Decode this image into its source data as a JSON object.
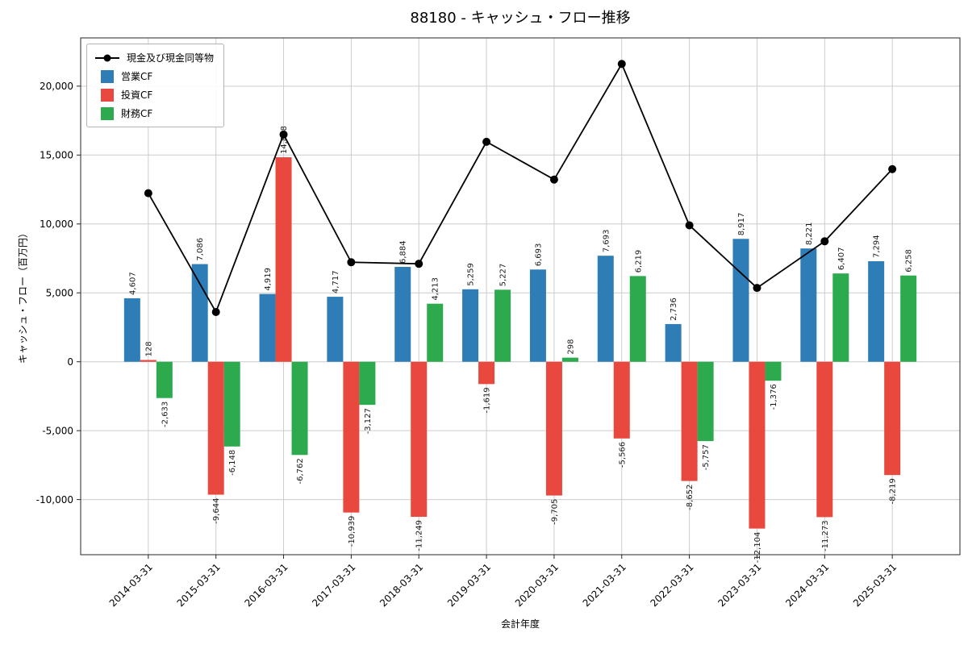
{
  "chart_data": {
    "type": "bar",
    "title": "88180 - キャッシュ・フロー推移",
    "xlabel": "会計年度",
    "ylabel": "キャッシュ・フロー（百万円）",
    "categories": [
      "2014-03-31",
      "2015-03-31",
      "2016-03-31",
      "2017-03-31",
      "2018-03-31",
      "2019-03-31",
      "2020-03-31",
      "2021-03-31",
      "2022-03-31",
      "2023-03-31",
      "2024-03-31",
      "2025-03-31"
    ],
    "series": [
      {
        "name": "現金及び現金同等物",
        "type": "line",
        "color": "#000000",
        "marker": "circle",
        "values": [
          12230,
          3610,
          16490,
          7220,
          7110,
          15960,
          13220,
          21610,
          9900,
          5360,
          8740,
          13980
        ]
      },
      {
        "name": "営業CF",
        "type": "bar",
        "color": "#2e7db6",
        "values": [
          4607,
          7086,
          4919,
          4717,
          6884,
          5259,
          6693,
          7693,
          2736,
          8917,
          8221,
          7294
        ]
      },
      {
        "name": "投資CF",
        "type": "bar",
        "color": "#e8483e",
        "values": [
          128,
          -9644,
          14838,
          -10939,
          -11249,
          -1619,
          -9705,
          -5566,
          -8652,
          -12104,
          -11273,
          -8219
        ]
      },
      {
        "name": "財務CF",
        "type": "bar",
        "color": "#2eaa4e",
        "values": [
          -2633,
          -6148,
          -6762,
          -3127,
          4213,
          5227,
          298,
          6219,
          -5757,
          -1376,
          6407,
          6258
        ]
      }
    ],
    "ylim": [
      -14000,
      23500
    ],
    "yticks": [
      -10000,
      -5000,
      0,
      5000,
      10000,
      15000,
      20000
    ],
    "grid": true,
    "legend_position": "upper-left",
    "bar_label_rotation": 90,
    "xtick_rotation": 45
  }
}
